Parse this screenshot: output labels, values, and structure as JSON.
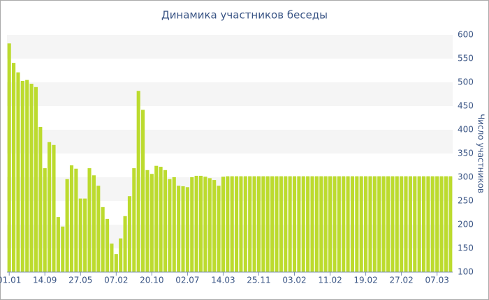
{
  "chart_data": {
    "type": "bar",
    "title": "Динамика участников беседы",
    "y_label": "Число участников",
    "categories": [
      "01.01",
      null,
      null,
      null,
      null,
      null,
      null,
      null,
      "14.09",
      null,
      null,
      null,
      null,
      null,
      null,
      null,
      "27.05",
      null,
      null,
      null,
      null,
      null,
      null,
      null,
      "07.02",
      null,
      null,
      null,
      null,
      null,
      null,
      null,
      "20.10",
      null,
      null,
      null,
      null,
      null,
      null,
      null,
      "02.07",
      null,
      null,
      null,
      null,
      null,
      null,
      null,
      "14.03",
      null,
      null,
      null,
      null,
      null,
      null,
      null,
      "25.11",
      null,
      null,
      null,
      null,
      null,
      null,
      null,
      "03.02",
      null,
      null,
      null,
      null,
      null,
      null,
      null,
      "11.02",
      null,
      null,
      null,
      null,
      null,
      null,
      null,
      "19.02",
      null,
      null,
      null,
      null,
      null,
      null,
      null,
      "27.02",
      null,
      null,
      null,
      null,
      null,
      null,
      null,
      "07.03",
      null,
      null,
      null
    ],
    "values": [
      582,
      541,
      521,
      503,
      505,
      497,
      490,
      406,
      319,
      374,
      368,
      216,
      196,
      296,
      325,
      318,
      255,
      255,
      319,
      304,
      282,
      237,
      212,
      160,
      138,
      171,
      218,
      260,
      319,
      482,
      442,
      315,
      307,
      324,
      322,
      315,
      296,
      300,
      282,
      281,
      279,
      300,
      303,
      303,
      301,
      298,
      294,
      282,
      301,
      302,
      302,
      302,
      302,
      302,
      302,
      302,
      302,
      302,
      302,
      302,
      302,
      302,
      302,
      302,
      302,
      302,
      302,
      302,
      302,
      302,
      302,
      302,
      302,
      302,
      302,
      302,
      302,
      302,
      302,
      302,
      302,
      302,
      302,
      302,
      302,
      302,
      302,
      302,
      302,
      302,
      302,
      302,
      302,
      302,
      302,
      302,
      302,
      302,
      302,
      302
    ],
    "color": "#bcdb2e",
    "ylim": [
      100,
      600
    ],
    "yticks": [
      100,
      150,
      200,
      250,
      300,
      350,
      400,
      450,
      500,
      550,
      600
    ],
    "grid": true,
    "y_axis_side": "right"
  }
}
